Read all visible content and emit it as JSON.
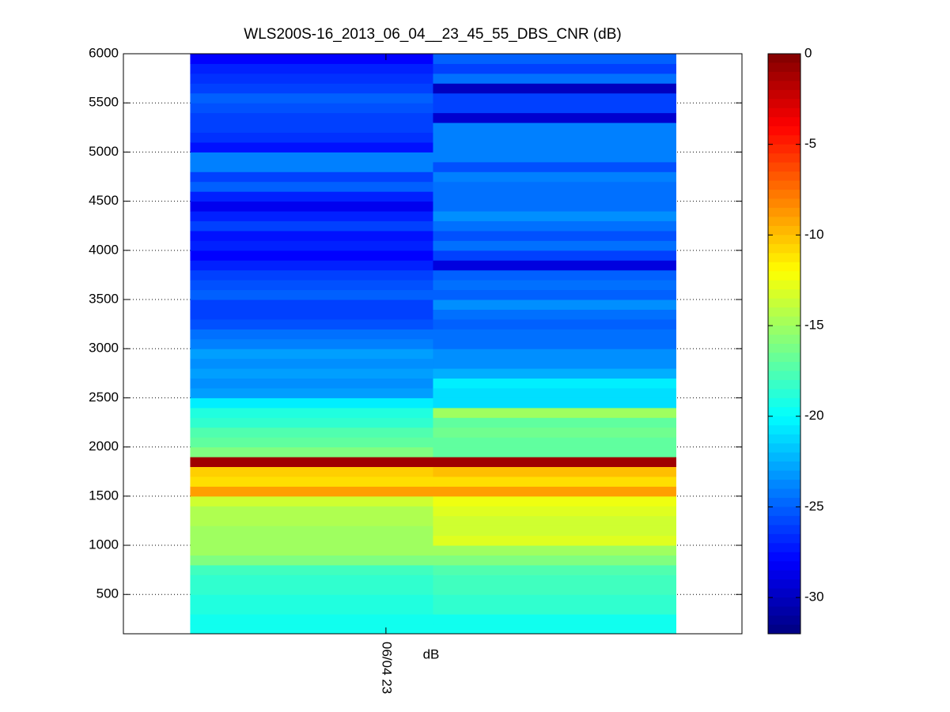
{
  "chart_data": {
    "type": "heatmap",
    "title": "WLS200S-16_2013_06_04__23_45_55_DBS_CNR (dB)",
    "xlabel": "dB",
    "x": [
      1,
      2
    ],
    "y": [
      150,
      250,
      350,
      450,
      550,
      650,
      750,
      850,
      950,
      1050,
      1150,
      1250,
      1350,
      1450,
      1550,
      1650,
      1750,
      1850,
      1950,
      2050,
      2150,
      2250,
      2350,
      2450,
      2550,
      2650,
      2750,
      2850,
      2950,
      3050,
      3150,
      3250,
      3350,
      3450,
      3550,
      3650,
      3750,
      3850,
      3950,
      4050,
      4150,
      4250,
      4350,
      4450,
      4550,
      4650,
      4750,
      4850,
      4950,
      5050,
      5150,
      5250,
      5350,
      5450,
      5550,
      5650,
      5750,
      5850,
      5950
    ],
    "z": [
      [
        -19.5,
        -19.5,
        -19,
        -19,
        -18.5,
        -18.5,
        -18,
        -16,
        -15,
        -15,
        -15,
        -14.5,
        -14.5,
        -13.5,
        -9,
        -11,
        -10.5,
        -1,
        -16,
        -17,
        -17.5,
        -18.5,
        -19,
        -20.5,
        -23,
        -23.5,
        -23,
        -23.5,
        -23,
        -24,
        -24.5,
        -25.5,
        -26,
        -26,
        -25,
        -25.5,
        -26,
        -27,
        -28,
        -27,
        -27.5,
        -26,
        -27,
        -28.5,
        -27,
        -25,
        -26,
        -24,
        -24,
        -27.5,
        -26.5,
        -26,
        -26,
        -25.5,
        -25,
        -26,
        -26.5,
        -27,
        -28
      ],
      [
        -19.5,
        -19.5,
        -18.5,
        -18.5,
        -18,
        -18,
        -17.5,
        -16,
        -15,
        -13,
        -13.5,
        -13.5,
        -13,
        -12.5,
        -9,
        -11,
        -10,
        -1,
        -17,
        -17,
        -16.5,
        -17,
        -15,
        -21,
        -21,
        -20.5,
        -22.5,
        -23.5,
        -23.5,
        -24.5,
        -24.5,
        -25,
        -24.5,
        -23.5,
        -25,
        -24.5,
        -25,
        -29,
        -26,
        -24.5,
        -25.5,
        -24.5,
        -23.5,
        -24.5,
        -24.5,
        -24.5,
        -24,
        -25.5,
        -24,
        -24,
        -24,
        -24,
        -29.5,
        -26,
        -26,
        -30,
        -24.5,
        -26,
        -25
      ]
    ],
    "xlim": [
      0.225,
      2.772
    ],
    "xticks": [
      {
        "value": 1.306,
        "label": "06/04 23"
      }
    ],
    "ylim": [
      100,
      6000
    ],
    "yticks": [
      500,
      1000,
      1500,
      2000,
      2500,
      3000,
      3500,
      4000,
      4500,
      5000,
      5500,
      6000
    ],
    "clim": [
      -32,
      0
    ],
    "cticks": [
      -30,
      -25,
      -20,
      -15,
      -10,
      -5,
      0
    ],
    "colormap": "jet",
    "grid": true
  }
}
